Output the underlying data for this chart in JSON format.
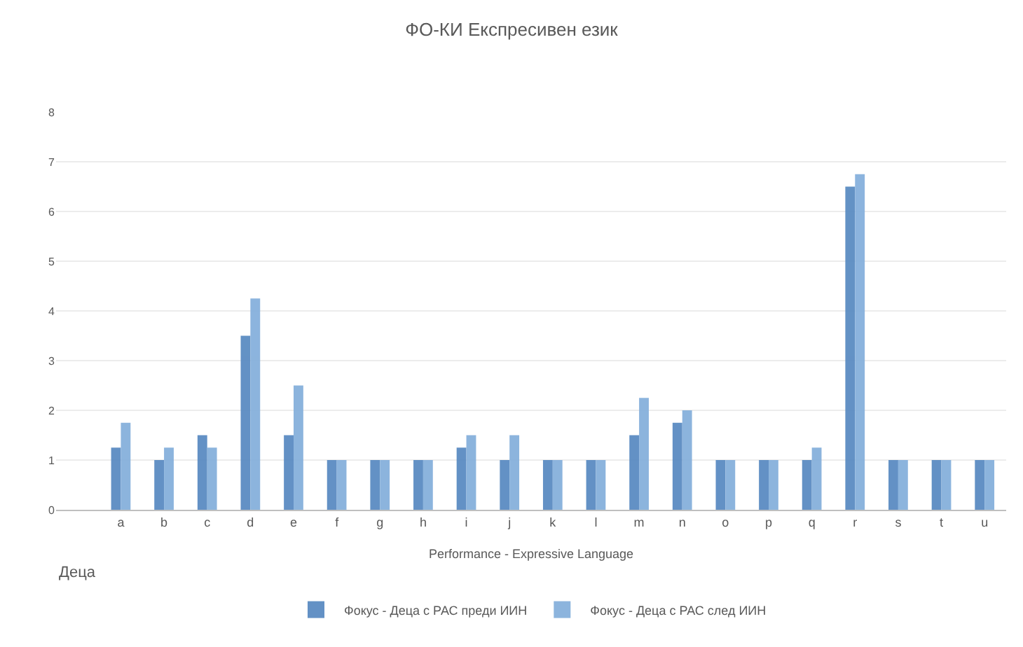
{
  "chart_data": {
    "type": "bar",
    "title": "ФО-КИ Експресивен език",
    "xlabel": "Performance - Expressive Language",
    "categories": [
      null,
      "a",
      "b",
      "c",
      "d",
      "e",
      "f",
      "g",
      "h",
      "i",
      "j",
      "k",
      "l",
      "m",
      "n",
      "o",
      "p",
      "q",
      "r",
      "s",
      "t",
      "u"
    ],
    "series": [
      {
        "name": "Фокус - Деца с РАС преди ИИН",
        "color": "#5b8cc2",
        "values": [
          null,
          1.25,
          1,
          1.5,
          3.5,
          1.5,
          1,
          1,
          1,
          1.25,
          1,
          1,
          1,
          1.5,
          1.75,
          1,
          1,
          1,
          6.5,
          1,
          1,
          1
        ]
      },
      {
        "name": "Фокус - Деца с РАС след ИИН",
        "color": "#86b0dc",
        "values": [
          null,
          1.75,
          1.25,
          1.25,
          4.25,
          2.5,
          1,
          1,
          1,
          1.5,
          1.5,
          1,
          1,
          2.25,
          2,
          1,
          1,
          1.25,
          6.75,
          1,
          1,
          1
        ]
      }
    ],
    "ylim": [
      0,
      8
    ],
    "yticks": [
      0,
      1,
      2,
      3,
      4,
      5,
      6,
      7,
      8
    ],
    "grid": "y",
    "legend": "bottom",
    "annotations": [
      "Деца"
    ]
  }
}
